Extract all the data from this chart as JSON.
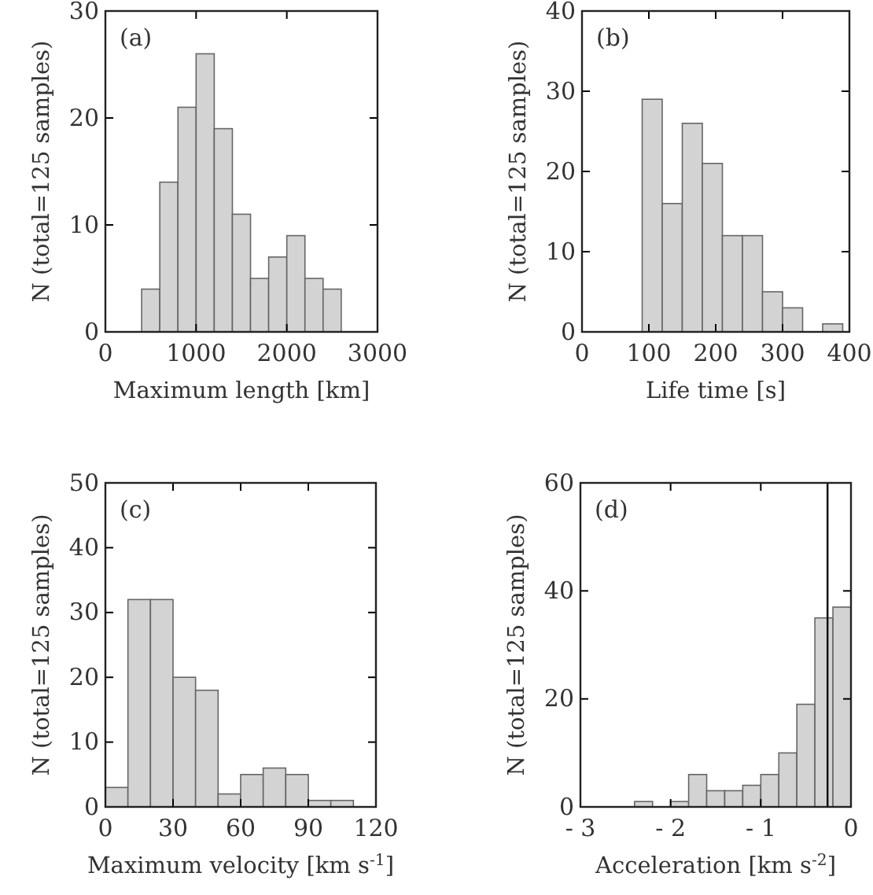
{
  "chart_data": [
    {
      "type": "histogram",
      "annotations": [
        "(a)"
      ],
      "xlabel": "Maximum length [km]",
      "ylabel": "N (total=125 samples)",
      "bins": [
        400,
        600,
        800,
        1000,
        1200,
        1400,
        1600,
        1800,
        2000,
        2200,
        2400,
        2600
      ],
      "values": [
        4,
        14,
        21,
        26,
        19,
        11,
        5,
        7,
        9,
        5,
        4
      ],
      "color": "#d3d3d3",
      "xlim": [
        0,
        3000
      ],
      "xticks": [
        0,
        1000,
        2000,
        3000
      ],
      "ylim": [
        0,
        30
      ],
      "yticks": [
        0,
        10,
        20,
        30
      ],
      "grid": false
    },
    {
      "type": "histogram",
      "annotations": [
        "(b)"
      ],
      "xlabel": "Life time [s]",
      "ylabel": "N (total=125 samples)",
      "bins": [
        90,
        120,
        150,
        180,
        210,
        240,
        270,
        300,
        330,
        360,
        390
      ],
      "values": [
        29,
        16,
        26,
        21,
        12,
        12,
        5,
        3,
        0,
        1
      ],
      "color": "#d3d3d3",
      "xlim": [
        0,
        400
      ],
      "xticks": [
        0,
        100,
        200,
        300,
        400
      ],
      "ylim": [
        0,
        40
      ],
      "yticks": [
        0,
        10,
        20,
        30,
        40
      ],
      "grid": false
    },
    {
      "type": "histogram",
      "annotations": [
        "(c)"
      ],
      "xlabel": "Maximum velocity [km s$^{-1}$]",
      "ylabel": "N (total=125 samples)",
      "bins": [
        0,
        10,
        20,
        30,
        40,
        50,
        60,
        70,
        80,
        90,
        100,
        110
      ],
      "values": [
        3,
        32,
        32,
        20,
        18,
        2,
        5,
        6,
        5,
        1,
        1
      ],
      "color": "#d3d3d3",
      "xlim": [
        0,
        120
      ],
      "xticks": [
        0,
        30,
        60,
        90,
        120
      ],
      "ylim": [
        0,
        50
      ],
      "yticks": [
        0,
        10,
        20,
        30,
        40,
        50
      ],
      "grid": false
    },
    {
      "type": "histogram",
      "annotations": [
        "(d)"
      ],
      "xlabel": "Acceleration [km s$^{-2}$]",
      "ylabel": "N (total=125 samples)",
      "bins": [
        -2.4,
        -2.2,
        -2.0,
        -1.8,
        -1.6,
        -1.4,
        -1.2,
        -1.0,
        -0.8,
        -0.6,
        -0.4,
        -0.2,
        0
      ],
      "values": [
        1,
        0,
        1,
        6,
        3,
        3,
        4,
        6,
        10,
        19,
        35,
        37
      ],
      "color": "#d3d3d3",
      "xlim": [
        -3,
        0
      ],
      "xticks": [
        {
          "value": -3,
          "label": "- 3"
        },
        {
          "value": -2,
          "label": "- 2"
        },
        {
          "value": -1,
          "label": "- 1"
        },
        0
      ],
      "ylim": [
        0,
        60
      ],
      "yticks": [
        0,
        20,
        40,
        60
      ],
      "grid": false,
      "ref_lines": [
        {
          "axis": "x",
          "value": -0.26,
          "color": "#000000"
        }
      ]
    }
  ]
}
